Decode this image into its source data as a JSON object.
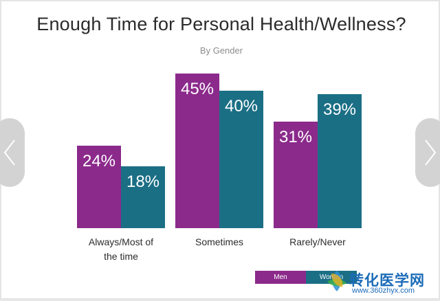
{
  "chart_data": {
    "type": "bar",
    "title": "Enough Time for Personal Health/Wellness?",
    "subtitle": "By Gender",
    "categories": [
      "Always/Most of the time",
      "Sometimes",
      "Rarely/Never"
    ],
    "category_lines": [
      [
        "Always/Most of",
        "the time"
      ],
      [
        "Sometimes"
      ],
      [
        "Rarely/Never"
      ]
    ],
    "series": [
      {
        "name": "Men",
        "values": [
          24,
          45,
          31
        ],
        "color": "#8b2a8b"
      },
      {
        "name": "Women",
        "values": [
          18,
          40,
          39
        ],
        "color": "#1b6f85"
      }
    ],
    "value_suffix": "%",
    "ylim": [
      0,
      50
    ],
    "grid": false,
    "legend_position": "bottom-right"
  },
  "legend": {
    "men_label": "Men",
    "women_label": "Women"
  },
  "nav": {
    "prev_icon": "chevron-left-icon",
    "next_icon": "chevron-right-icon"
  },
  "watermark": {
    "text": "转化医学网",
    "url": "www.360zhyx.com"
  }
}
